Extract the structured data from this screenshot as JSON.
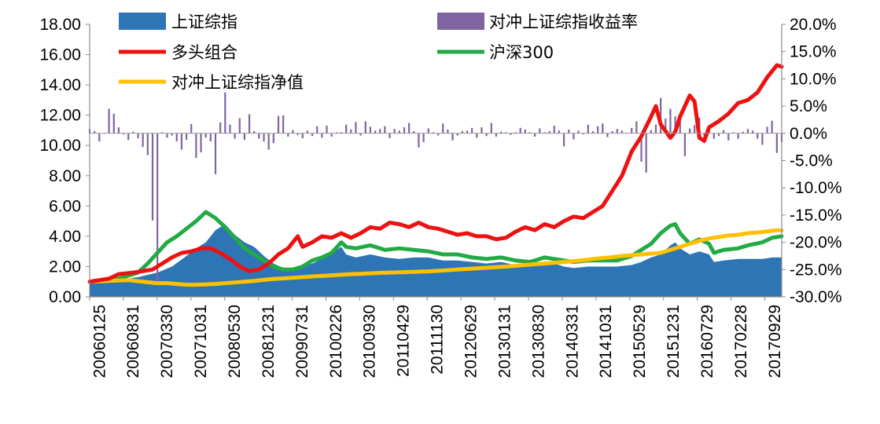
{
  "chart_data": {
    "type": "line",
    "colors": {
      "index_area": "#2e75b6",
      "hedge_return_bar": "#8064a2",
      "long_portfolio": "#ee1111",
      "csi300": "#22aa44",
      "hedge_nav": "#ffc000"
    },
    "legend": {
      "index": "上证综指",
      "hedge_return": "对冲上证综指收益率",
      "long": "多头组合",
      "csi300": "沪深300",
      "hedge_nav": "对冲上证综指净值"
    },
    "y_left": {
      "range": [
        0,
        18
      ],
      "ticks": [
        "0.00",
        "2.00",
        "4.00",
        "6.00",
        "8.00",
        "10.00",
        "12.00",
        "14.00",
        "16.00",
        "18.00"
      ]
    },
    "y_right": {
      "range": [
        -30,
        20
      ],
      "ticks": [
        "-30.0%",
        "-25.0%",
        "-20.0%",
        "-15.0%",
        "-10.0%",
        "-5.0%",
        "0.0%",
        "5.0%",
        "10.0%",
        "15.0%",
        "20.0%"
      ]
    },
    "x_labels": [
      "20060125",
      "20060831",
      "20070330",
      "20071031",
      "20080530",
      "20081231",
      "20090731",
      "20100226",
      "20100930",
      "20110429",
      "20111130",
      "20120629",
      "20130131",
      "20130830",
      "20140331",
      "20141031",
      "20150529",
      "20151231",
      "20160729",
      "20170228",
      "20170929"
    ],
    "x_count": 144,
    "series": {
      "index": [
        [
          0,
          1.0
        ],
        [
          6,
          1.1
        ],
        [
          10,
          1.3
        ],
        [
          14,
          1.6
        ],
        [
          17,
          2.0
        ],
        [
          20,
          2.7
        ],
        [
          22,
          3.2
        ],
        [
          24,
          3.6
        ],
        [
          26,
          4.4
        ],
        [
          28,
          4.8
        ],
        [
          30,
          4.1
        ],
        [
          32,
          3.6
        ],
        [
          34,
          3.3
        ],
        [
          36,
          2.7
        ],
        [
          38,
          2.2
        ],
        [
          40,
          1.9
        ],
        [
          42,
          1.8
        ],
        [
          44,
          2.0
        ],
        [
          46,
          2.2
        ],
        [
          48,
          2.5
        ],
        [
          50,
          2.9
        ],
        [
          52,
          3.3
        ],
        [
          53,
          2.8
        ],
        [
          55,
          2.6
        ],
        [
          58,
          2.8
        ],
        [
          61,
          2.6
        ],
        [
          64,
          2.5
        ],
        [
          67,
          2.6
        ],
        [
          70,
          2.6
        ],
        [
          73,
          2.4
        ],
        [
          76,
          2.4
        ],
        [
          79,
          2.3
        ],
        [
          82,
          2.2
        ],
        [
          85,
          2.3
        ],
        [
          88,
          2.1
        ],
        [
          91,
          2.0
        ],
        [
          94,
          2.2
        ],
        [
          96,
          2.2
        ],
        [
          98,
          2.0
        ],
        [
          100,
          1.9
        ],
        [
          103,
          2.0
        ],
        [
          106,
          2.0
        ],
        [
          109,
          2.0
        ],
        [
          112,
          2.1
        ],
        [
          114,
          2.3
        ],
        [
          116,
          2.6
        ],
        [
          118,
          2.8
        ],
        [
          120,
          3.4
        ],
        [
          121,
          3.6
        ],
        [
          122,
          3.2
        ],
        [
          124,
          2.8
        ],
        [
          126,
          3.0
        ],
        [
          128,
          2.8
        ],
        [
          129,
          2.3
        ],
        [
          131,
          2.4
        ],
        [
          134,
          2.5
        ],
        [
          136,
          2.5
        ],
        [
          139,
          2.5
        ],
        [
          141,
          2.6
        ],
        [
          143,
          2.6
        ]
      ],
      "long": [
        [
          0,
          1.0
        ],
        [
          4,
          1.2
        ],
        [
          6,
          1.5
        ],
        [
          9,
          1.6
        ],
        [
          11,
          1.7
        ],
        [
          13,
          1.8
        ],
        [
          15,
          2.2
        ],
        [
          17,
          2.6
        ],
        [
          19,
          2.9
        ],
        [
          21,
          3.0
        ],
        [
          23,
          3.2
        ],
        [
          25,
          3.2
        ],
        [
          27,
          2.9
        ],
        [
          29,
          2.5
        ],
        [
          31,
          2.0
        ],
        [
          33,
          1.7
        ],
        [
          35,
          1.8
        ],
        [
          37,
          2.2
        ],
        [
          39,
          2.8
        ],
        [
          41,
          3.2
        ],
        [
          43,
          4.0
        ],
        [
          44,
          3.3
        ],
        [
          46,
          3.6
        ],
        [
          48,
          4.0
        ],
        [
          50,
          3.9
        ],
        [
          52,
          4.2
        ],
        [
          54,
          3.9
        ],
        [
          56,
          4.2
        ],
        [
          58,
          4.6
        ],
        [
          60,
          4.5
        ],
        [
          62,
          4.9
        ],
        [
          64,
          4.8
        ],
        [
          66,
          4.6
        ],
        [
          68,
          4.9
        ],
        [
          70,
          4.6
        ],
        [
          72,
          4.5
        ],
        [
          74,
          4.3
        ],
        [
          76,
          4.1
        ],
        [
          78,
          4.2
        ],
        [
          80,
          4.0
        ],
        [
          82,
          4.0
        ],
        [
          84,
          3.8
        ],
        [
          86,
          3.9
        ],
        [
          88,
          4.3
        ],
        [
          90,
          4.6
        ],
        [
          92,
          4.4
        ],
        [
          94,
          4.8
        ],
        [
          96,
          4.6
        ],
        [
          98,
          5.0
        ],
        [
          100,
          5.3
        ],
        [
          102,
          5.2
        ],
        [
          104,
          5.6
        ],
        [
          106,
          6.0
        ],
        [
          108,
          7.0
        ],
        [
          110,
          8.0
        ],
        [
          112,
          9.6
        ],
        [
          114,
          10.6
        ],
        [
          116,
          11.9
        ],
        [
          117,
          12.6
        ],
        [
          118,
          11.4
        ],
        [
          120,
          10.5
        ],
        [
          121,
          10.9
        ],
        [
          122,
          11.9
        ],
        [
          124,
          13.3
        ],
        [
          125,
          12.9
        ],
        [
          126,
          10.5
        ],
        [
          127,
          10.3
        ],
        [
          128,
          11.2
        ],
        [
          130,
          11.6
        ],
        [
          132,
          12.1
        ],
        [
          134,
          12.8
        ],
        [
          136,
          13.0
        ],
        [
          138,
          13.5
        ],
        [
          140,
          14.5
        ],
        [
          142,
          15.3
        ],
        [
          143,
          15.2
        ]
      ],
      "csi300": [
        [
          0,
          1.0
        ],
        [
          5,
          1.1
        ],
        [
          8,
          1.4
        ],
        [
          10,
          1.6
        ],
        [
          12,
          2.2
        ],
        [
          14,
          2.9
        ],
        [
          16,
          3.6
        ],
        [
          18,
          4.0
        ],
        [
          20,
          4.5
        ],
        [
          22,
          5.0
        ],
        [
          24,
          5.6
        ],
        [
          26,
          5.2
        ],
        [
          28,
          4.6
        ],
        [
          30,
          3.9
        ],
        [
          32,
          3.2
        ],
        [
          34,
          2.8
        ],
        [
          36,
          2.4
        ],
        [
          38,
          2.0
        ],
        [
          40,
          1.8
        ],
        [
          42,
          1.8
        ],
        [
          44,
          2.0
        ],
        [
          46,
          2.4
        ],
        [
          48,
          2.6
        ],
        [
          50,
          2.9
        ],
        [
          52,
          3.6
        ],
        [
          53,
          3.3
        ],
        [
          55,
          3.2
        ],
        [
          58,
          3.4
        ],
        [
          61,
          3.1
        ],
        [
          64,
          3.2
        ],
        [
          67,
          3.1
        ],
        [
          70,
          3.0
        ],
        [
          73,
          2.8
        ],
        [
          76,
          2.8
        ],
        [
          79,
          2.6
        ],
        [
          82,
          2.5
        ],
        [
          85,
          2.6
        ],
        [
          88,
          2.4
        ],
        [
          91,
          2.3
        ],
        [
          94,
          2.6
        ],
        [
          96,
          2.5
        ],
        [
          98,
          2.4
        ],
        [
          100,
          2.3
        ],
        [
          103,
          2.4
        ],
        [
          106,
          2.4
        ],
        [
          109,
          2.4
        ],
        [
          112,
          2.7
        ],
        [
          114,
          3.1
        ],
        [
          116,
          3.5
        ],
        [
          118,
          4.2
        ],
        [
          120,
          4.7
        ],
        [
          121,
          4.8
        ],
        [
          122,
          4.2
        ],
        [
          124,
          3.5
        ],
        [
          126,
          3.8
        ],
        [
          128,
          3.5
        ],
        [
          129,
          2.9
        ],
        [
          131,
          3.1
        ],
        [
          134,
          3.2
        ],
        [
          136,
          3.4
        ],
        [
          139,
          3.6
        ],
        [
          141,
          3.9
        ],
        [
          143,
          4.0
        ]
      ],
      "hedge_nav": [
        [
          0,
          1.0
        ],
        [
          4,
          1.05
        ],
        [
          8,
          1.1
        ],
        [
          11,
          1.0
        ],
        [
          14,
          0.9
        ],
        [
          16,
          0.9
        ],
        [
          18,
          0.85
        ],
        [
          20,
          0.8
        ],
        [
          22,
          0.8
        ],
        [
          24,
          0.82
        ],
        [
          26,
          0.85
        ],
        [
          28,
          0.9
        ],
        [
          30,
          0.95
        ],
        [
          32,
          1.0
        ],
        [
          34,
          1.05
        ],
        [
          36,
          1.12
        ],
        [
          38,
          1.18
        ],
        [
          40,
          1.22
        ],
        [
          42,
          1.26
        ],
        [
          44,
          1.3
        ],
        [
          46,
          1.35
        ],
        [
          48,
          1.38
        ],
        [
          50,
          1.42
        ],
        [
          52,
          1.46
        ],
        [
          54,
          1.5
        ],
        [
          56,
          1.52
        ],
        [
          58,
          1.55
        ],
        [
          60,
          1.58
        ],
        [
          62,
          1.6
        ],
        [
          64,
          1.62
        ],
        [
          66,
          1.64
        ],
        [
          68,
          1.66
        ],
        [
          70,
          1.68
        ],
        [
          72,
          1.72
        ],
        [
          74,
          1.76
        ],
        [
          76,
          1.8
        ],
        [
          78,
          1.84
        ],
        [
          80,
          1.88
        ],
        [
          82,
          1.92
        ],
        [
          84,
          1.96
        ],
        [
          86,
          2.0
        ],
        [
          88,
          2.05
        ],
        [
          90,
          2.1
        ],
        [
          92,
          2.15
        ],
        [
          94,
          2.2
        ],
        [
          96,
          2.25
        ],
        [
          98,
          2.3
        ],
        [
          100,
          2.36
        ],
        [
          102,
          2.42
        ],
        [
          104,
          2.5
        ],
        [
          106,
          2.56
        ],
        [
          108,
          2.62
        ],
        [
          110,
          2.7
        ],
        [
          112,
          2.75
        ],
        [
          114,
          2.8
        ],
        [
          116,
          2.85
        ],
        [
          118,
          2.9
        ],
        [
          120,
          3.1
        ],
        [
          122,
          3.3
        ],
        [
          124,
          3.5
        ],
        [
          126,
          3.7
        ],
        [
          128,
          3.85
        ],
        [
          130,
          3.95
        ],
        [
          132,
          4.05
        ],
        [
          134,
          4.1
        ],
        [
          136,
          4.2
        ],
        [
          138,
          4.25
        ],
        [
          140,
          4.32
        ],
        [
          142,
          4.4
        ],
        [
          143,
          4.38
        ]
      ],
      "hedge_return_pct": [
        0.8,
        0.4,
        -1.5,
        0,
        4.5,
        3.6,
        1.1,
        -0.2,
        -1.2,
        0.3,
        -0.9,
        -2.5,
        -4,
        -16,
        -28,
        0.2,
        -0.8,
        -0.4,
        -1.5,
        -3,
        -1.2,
        1.7,
        -4.5,
        -3.5,
        -0.8,
        -1.5,
        -7.5,
        2,
        7.5,
        1.6,
        -1,
        2.8,
        -1.2,
        3.5,
        0.4,
        -1,
        -1.5,
        -3,
        -1.8,
        3.2,
        3.3,
        -0.6,
        0.6,
        -0.3,
        -0.9,
        0.5,
        -0.5,
        1.3,
        -0.8,
        1.4,
        -0.6,
        0.2,
        0.2,
        1.6,
        0.7,
        2.1,
        -0.4,
        2.2,
        1.2,
        0.5,
        0.8,
        1.3,
        -0.9,
        0.8,
        0.5,
        1.1,
        1.9,
        0.4,
        -2.6,
        -1.6,
        0.9,
        0.2,
        -0.4,
        1.8,
        0.7,
        -1.3,
        -0.4,
        0.4,
        0.5,
        1.0,
        -0.8,
        1.1,
        -0.5,
        1.9,
        -0.6,
        0.3,
        0.2,
        -0.3,
        0.2,
        1.0,
        0.7,
        0.2,
        -0.6,
        0.9,
        0.2,
        0.4,
        1.4,
        0.5,
        -2.4,
        0.7,
        -1.1,
        0.5,
        -0.2,
        1.6,
        0.4,
        1.3,
        1.8,
        -0.7,
        0.4,
        0.8,
        0.5,
        0.1,
        1.0,
        2.2,
        -5.2,
        -7.2,
        0.6,
        1.6,
        6.5,
        2.7,
        4.5,
        3.1,
        2.4,
        -4.2,
        0.9,
        1.5,
        2.9,
        -1.8,
        1.2,
        -1.0,
        -0.5,
        0.6,
        -1.3,
        0.2,
        -1.0,
        0.3,
        0.8,
        0.5,
        -1.0,
        -2.1,
        1.2,
        2.3,
        -3.6,
        -1.6
      ]
    }
  }
}
